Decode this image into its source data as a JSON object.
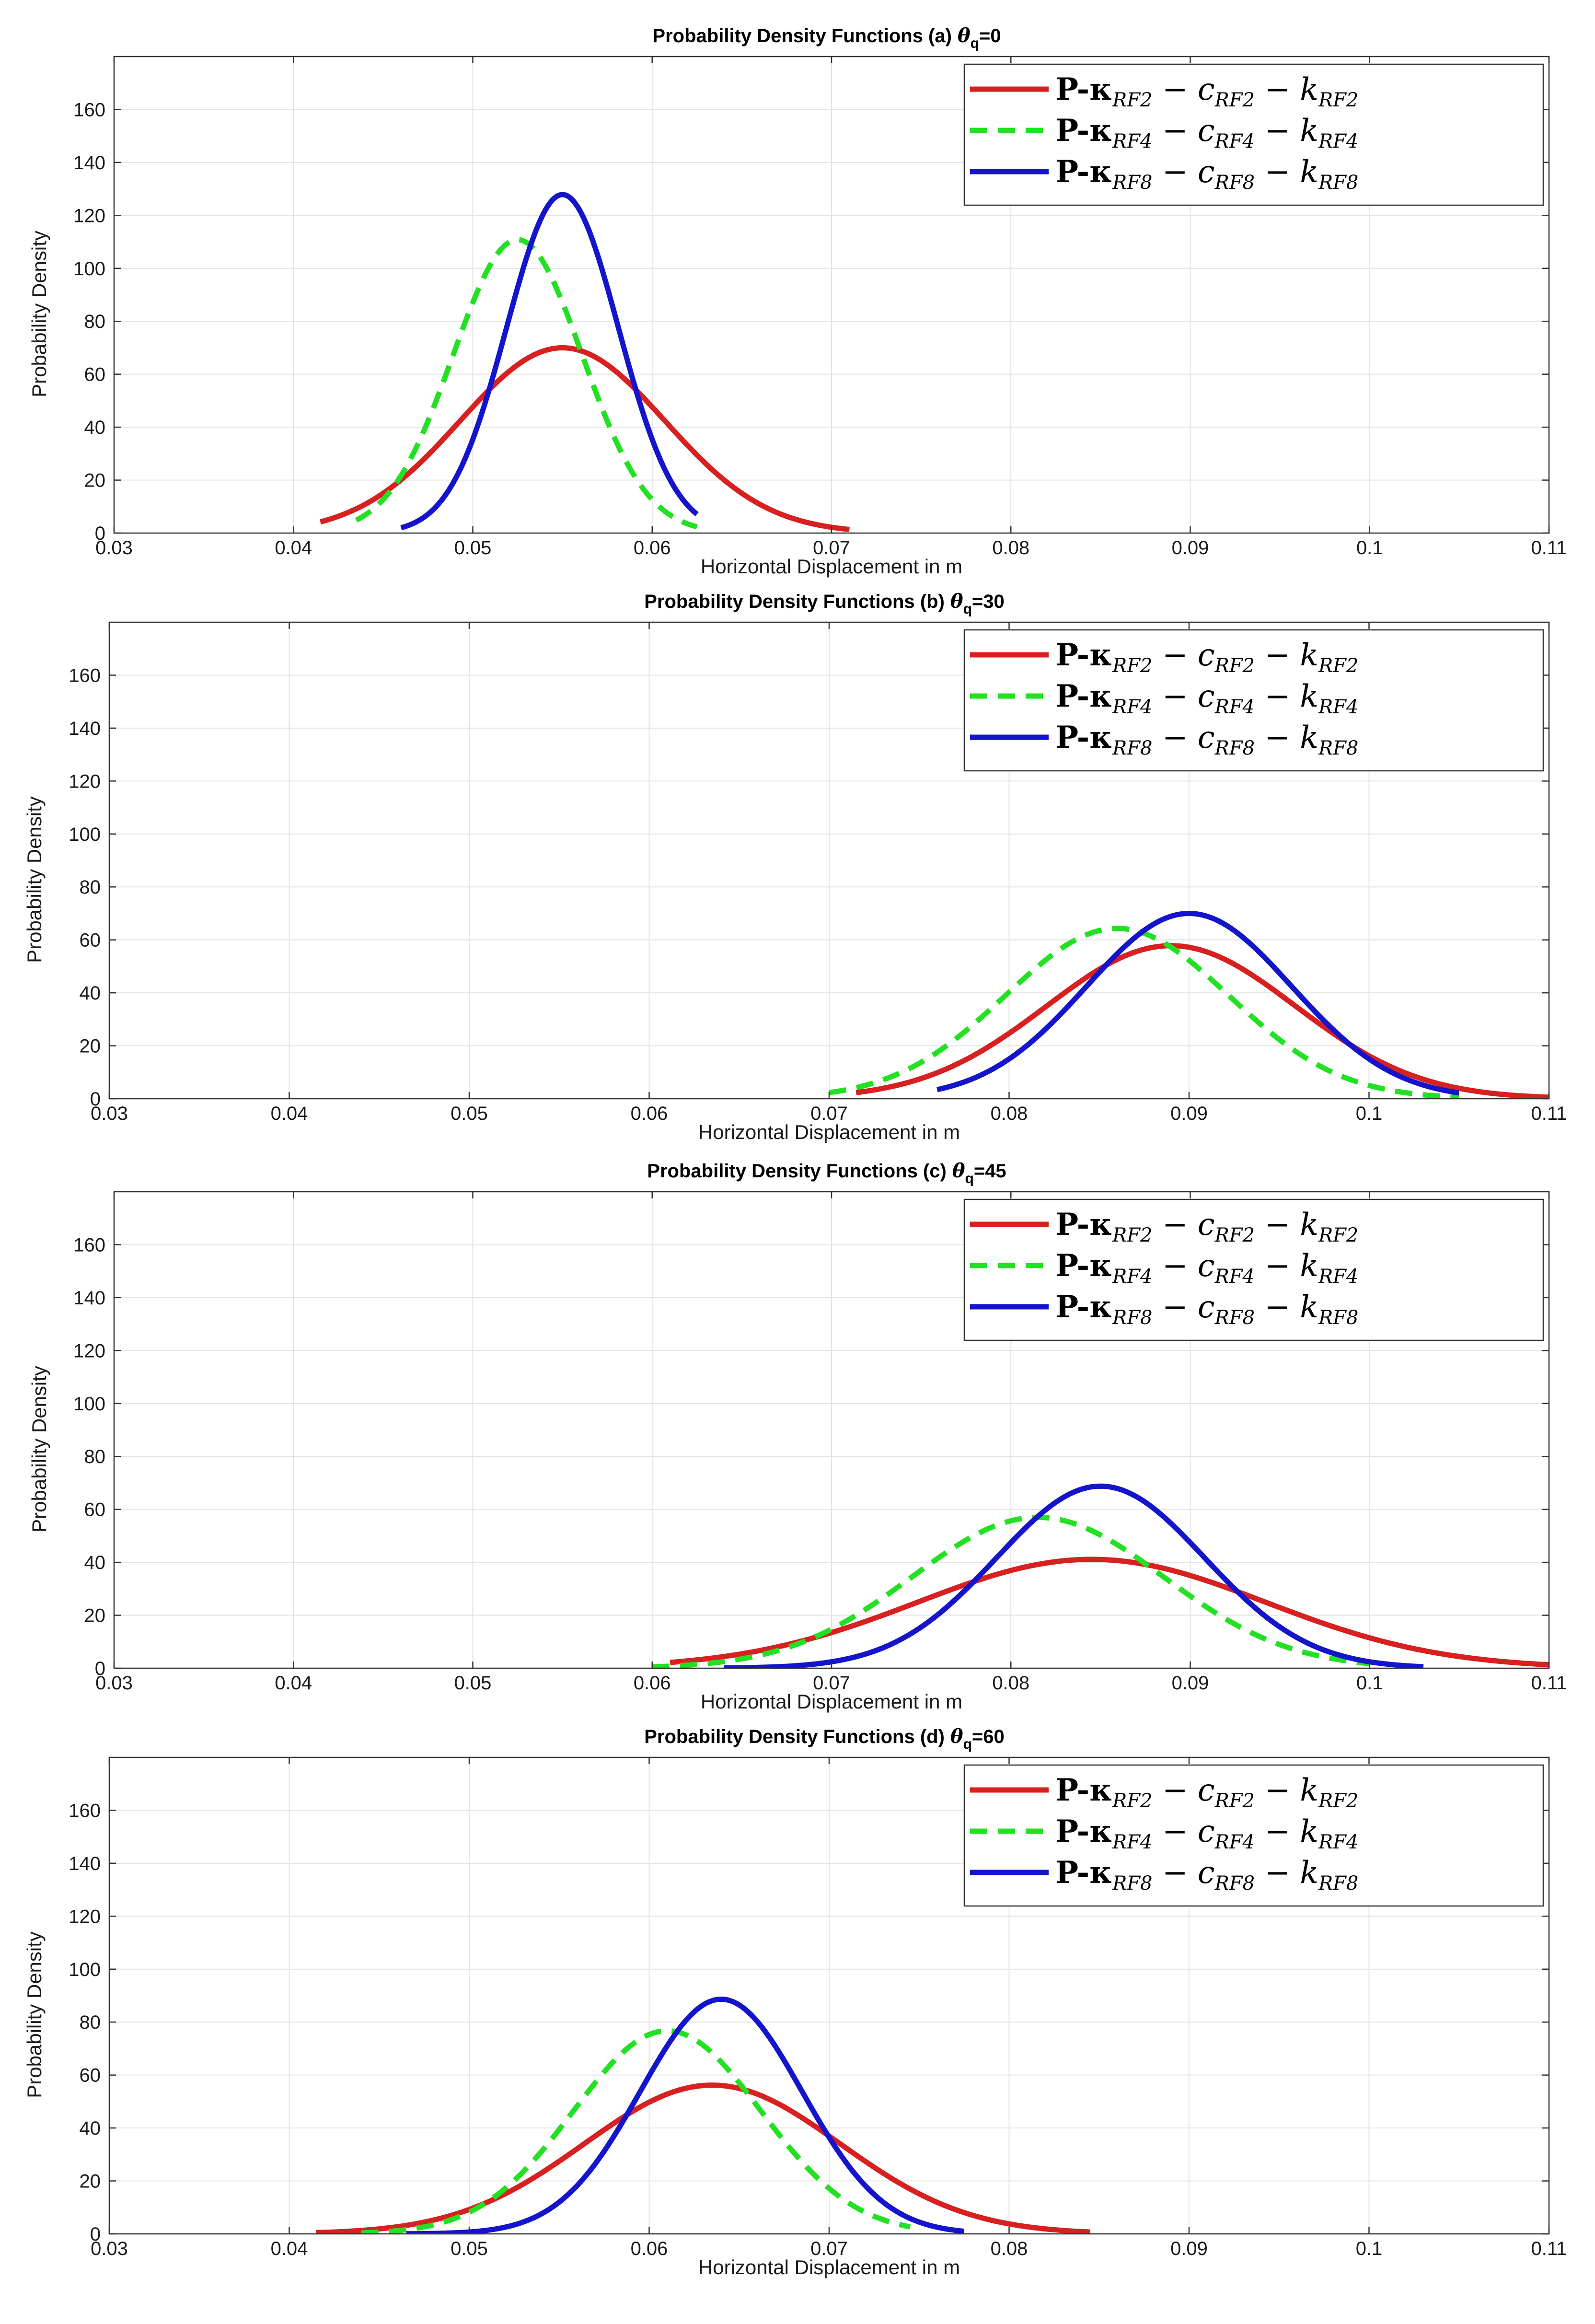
{
  "colors": {
    "red": "#d92020",
    "green": "#22e022",
    "blue": "#1414cc"
  },
  "chart_data": [
    {
      "type": "line",
      "title": "Probability Density Functions (a) θq=0",
      "title_main": "Probability Density Functions (a)",
      "title_theta": "θ",
      "title_sub": "q",
      "title_value": "=0",
      "xlabel": "Horizontal Displacement in m",
      "ylabel": "Probability Density",
      "xlim": [
        0.03,
        0.11
      ],
      "ylim": [
        0,
        180
      ],
      "xticks": [
        "0.03",
        "0.04",
        "0.05",
        "0.06",
        "0.07",
        "0.08",
        "0.09",
        "0.1",
        "0.11"
      ],
      "yticks": [
        "0",
        "20",
        "40",
        "60",
        "80",
        "100",
        "120",
        "140",
        "160"
      ],
      "grid": true,
      "legend_position": "top-right",
      "series": [
        {
          "name": "P-κRF2 − cRF2 − kRF2",
          "legend_main": "P-κ",
          "legend_sub1": "RF2",
          "legend_mid1": " − c",
          "legend_sub2": "RF2",
          "legend_mid2": " − k",
          "legend_sub3": "RF2",
          "color": "red",
          "dash": "solid",
          "mean": 0.055,
          "std": 0.0057,
          "x_range": [
            0.0415,
            0.071
          ]
        },
        {
          "name": "P-κRF4 − cRF4 − kRF4",
          "legend_main": "P-κ",
          "legend_sub1": "RF4",
          "legend_mid1": " − c",
          "legend_sub2": "RF4",
          "legend_mid2": " − k",
          "legend_sub3": "RF4",
          "color": "green",
          "dash": "dashed",
          "mean": 0.0525,
          "std": 0.0036,
          "x_range": [
            0.0435,
            0.0625
          ]
        },
        {
          "name": "P-κRF8 − cRF8 − kRF8",
          "legend_main": "P-κ",
          "legend_sub1": "RF8",
          "legend_mid1": " − c",
          "legend_sub2": "RF8",
          "legend_mid2": " − k",
          "legend_sub3": "RF8",
          "color": "blue",
          "dash": "solid",
          "mean": 0.055,
          "std": 0.00312,
          "x_range": [
            0.046,
            0.0625
          ]
        }
      ]
    },
    {
      "type": "line",
      "title": "Probability Density Functions (b) θq=30",
      "title_main": "Probability Density Functions (b)",
      "title_theta": "θ",
      "title_sub": "q",
      "title_value": "=30",
      "xlabel": "Horizontal Displacement in m",
      "ylabel": "Probability Density",
      "xlim": [
        0.03,
        0.11
      ],
      "ylim": [
        0,
        180
      ],
      "xticks": [
        "0.03",
        "0.04",
        "0.05",
        "0.06",
        "0.07",
        "0.08",
        "0.09",
        "0.1",
        "0.11"
      ],
      "yticks": [
        "0",
        "20",
        "40",
        "60",
        "80",
        "100",
        "120",
        "140",
        "160"
      ],
      "grid": true,
      "legend_position": "top-right",
      "series": [
        {
          "name": "P-κRF2 − cRF2 − kRF2",
          "legend_main": "P-κ",
          "legend_sub1": "RF2",
          "legend_mid1": " − c",
          "legend_sub2": "RF2",
          "legend_mid2": " − k",
          "legend_sub3": "RF2",
          "color": "red",
          "dash": "solid",
          "mean": 0.089,
          "std": 0.0069,
          "x_range": [
            0.0715,
            0.11
          ]
        },
        {
          "name": "P-κRF4 − cRF4 − kRF4",
          "legend_main": "P-κ",
          "legend_sub1": "RF4",
          "legend_mid1": " − c",
          "legend_sub2": "RF4",
          "legend_mid2": " − k",
          "legend_sub3": "RF4",
          "color": "green",
          "dash": "dashed",
          "mean": 0.086,
          "std": 0.0062,
          "x_range": [
            0.07,
            0.105
          ]
        },
        {
          "name": "P-κRF8 − cRF8 − kRF8",
          "legend_main": "P-κ",
          "legend_sub1": "RF8",
          "legend_mid1": " − c",
          "legend_sub2": "RF8",
          "legend_mid2": " − k",
          "legend_sub3": "RF8",
          "color": "blue",
          "dash": "solid",
          "mean": 0.09,
          "std": 0.0057,
          "x_range": [
            0.076,
            0.105
          ]
        }
      ]
    },
    {
      "type": "line",
      "title": "Probability Density Functions (c) θq=45",
      "title_main": "Probability Density Functions (c)",
      "title_theta": "θ",
      "title_sub": "q",
      "title_value": "=45",
      "xlabel": "Horizontal Displacement in m",
      "ylabel": "Probability Density",
      "xlim": [
        0.03,
        0.11
      ],
      "ylim": [
        0,
        180
      ],
      "xticks": [
        "0.03",
        "0.04",
        "0.05",
        "0.06",
        "0.07",
        "0.08",
        "0.09",
        "0.1",
        "0.11"
      ],
      "yticks": [
        "0",
        "20",
        "40",
        "60",
        "80",
        "100",
        "120",
        "140",
        "160"
      ],
      "grid": true,
      "legend_position": "top-right",
      "series": [
        {
          "name": "P-κRF2 − cRF2 − kRF2",
          "legend_main": "P-κ",
          "legend_sub1": "RF2",
          "legend_mid1": " − c",
          "legend_sub2": "RF2",
          "legend_mid2": " − k",
          "legend_sub3": "RF2",
          "color": "red",
          "dash": "solid",
          "mean": 0.0845,
          "std": 0.0097,
          "x_range": [
            0.061,
            0.11
          ]
        },
        {
          "name": "P-κRF4 − cRF4 − kRF4",
          "legend_main": "P-κ",
          "legend_sub1": "RF4",
          "legend_mid1": " − c",
          "legend_sub2": "RF4",
          "legend_mid2": " − k",
          "legend_sub3": "RF4",
          "color": "green",
          "dash": "dashed",
          "mean": 0.0815,
          "std": 0.007,
          "x_range": [
            0.06,
            0.1
          ]
        },
        {
          "name": "P-κRF8 − cRF8 − kRF8",
          "legend_main": "P-κ",
          "legend_sub1": "RF8",
          "legend_mid1": " − c",
          "legend_sub2": "RF8",
          "legend_mid2": " − k",
          "legend_sub3": "RF8",
          "color": "blue",
          "dash": "solid",
          "mean": 0.085,
          "std": 0.0058,
          "x_range": [
            0.064,
            0.103
          ]
        }
      ]
    },
    {
      "type": "line",
      "title": "Probability Density Functions (d) θq=60",
      "title_main": "Probability Density Functions (d)",
      "title_theta": "θ",
      "title_sub": "q",
      "title_value": "=60",
      "xlabel": "Horizontal Displacement in m",
      "ylabel": "Probability Density",
      "xlim": [
        0.03,
        0.11
      ],
      "ylim": [
        0,
        180
      ],
      "xticks": [
        "0.03",
        "0.04",
        "0.05",
        "0.06",
        "0.07",
        "0.08",
        "0.09",
        "0.1",
        "0.11"
      ],
      "yticks": [
        "0",
        "20",
        "40",
        "60",
        "80",
        "100",
        "120",
        "140",
        "160"
      ],
      "grid": true,
      "legend_position": "top-right",
      "series": [
        {
          "name": "P-κRF2 − cRF2 − kRF2",
          "legend_main": "P-κ",
          "legend_sub1": "RF2",
          "legend_mid1": " − c",
          "legend_sub2": "RF2",
          "legend_mid2": " − k",
          "legend_sub3": "RF2",
          "color": "red",
          "dash": "solid",
          "mean": 0.0635,
          "std": 0.0071,
          "x_range": [
            0.0415,
            0.0845
          ]
        },
        {
          "name": "P-κRF4 − cRF4 − kRF4",
          "legend_main": "P-κ",
          "legend_sub1": "RF4",
          "legend_mid1": " − c",
          "legend_sub2": "RF4",
          "legend_mid2": " − k",
          "legend_sub3": "RF4",
          "color": "green",
          "dash": "dashed",
          "mean": 0.061,
          "std": 0.0052,
          "x_range": [
            0.044,
            0.0745
          ]
        },
        {
          "name": "P-κRF8 − cRF8 − kRF8",
          "legend_main": "P-κ",
          "legend_sub1": "RF8",
          "legend_mid1": " − c",
          "legend_sub2": "RF8",
          "legend_mid2": " − k",
          "legend_sub3": "RF8",
          "color": "blue",
          "dash": "solid",
          "mean": 0.064,
          "std": 0.0045,
          "x_range": [
            0.0465,
            0.0775
          ]
        }
      ]
    }
  ]
}
